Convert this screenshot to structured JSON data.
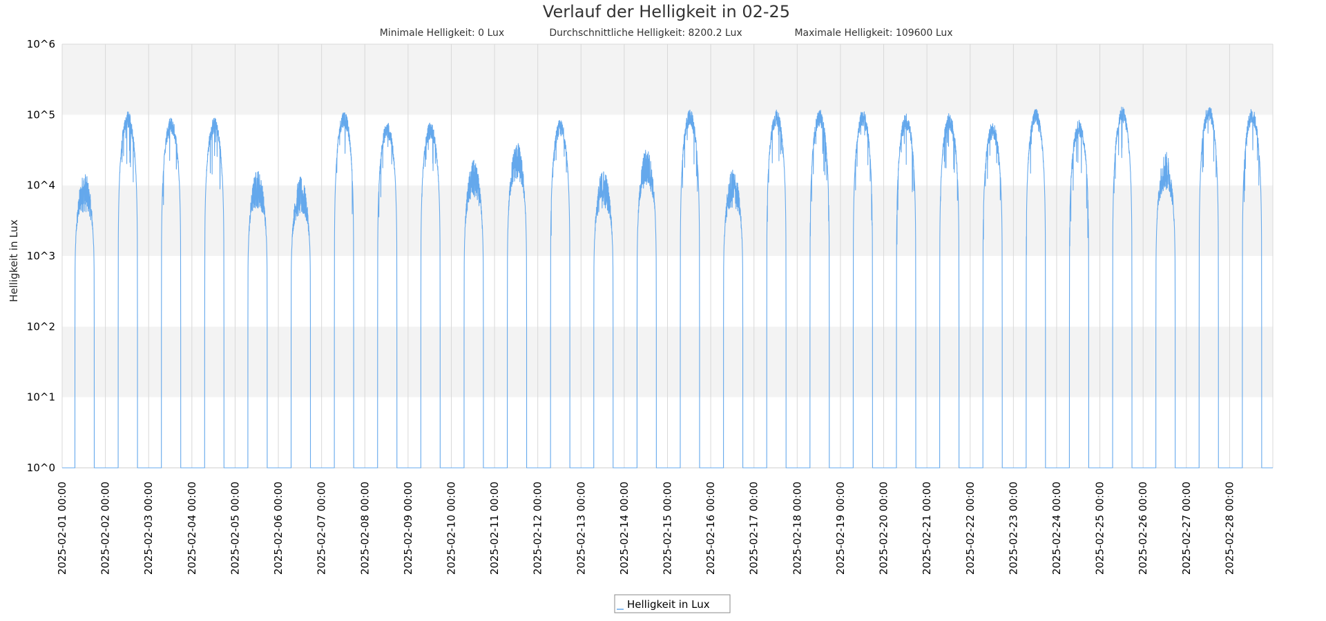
{
  "chart_data": {
    "type": "line",
    "title": "Verlauf der Helligkeit in 02-25",
    "subtitle": {
      "min": "Minimale Helligkeit: 0 Lux",
      "avg": "Durchschnittliche Helligkeit: 8200.2 Lux",
      "max": "Maximale Helligkeit: 109600 Lux"
    },
    "ylabel": "Helligkeit in Lux",
    "yscale": "log",
    "ylim": [
      1,
      1000000
    ],
    "y_ticks": [
      "10^0",
      "10^1",
      "10^2",
      "10^3",
      "10^4",
      "10^5",
      "10^6"
    ],
    "xlim": [
      "2025-02-01 00:00",
      "2025-03-01 00:00"
    ],
    "x_ticks": [
      "2025-02-01 00:00",
      "2025-02-02 00:00",
      "2025-02-03 00:00",
      "2025-02-04 00:00",
      "2025-02-05 00:00",
      "2025-02-06 00:00",
      "2025-02-07 00:00",
      "2025-02-08 00:00",
      "2025-02-09 00:00",
      "2025-02-10 00:00",
      "2025-02-11 00:00",
      "2025-02-12 00:00",
      "2025-02-13 00:00",
      "2025-02-14 00:00",
      "2025-02-15 00:00",
      "2025-02-16 00:00",
      "2025-02-17 00:00",
      "2025-02-18 00:00",
      "2025-02-19 00:00",
      "2025-02-20 00:00",
      "2025-02-21 00:00",
      "2025-02-22 00:00",
      "2025-02-23 00:00",
      "2025-02-24 00:00",
      "2025-02-25 00:00",
      "2025-02-26 00:00",
      "2025-02-27 00:00",
      "2025-02-28 00:00"
    ],
    "grid": true,
    "legend": {
      "position": "bottom-center"
    },
    "series": [
      {
        "name": "Helligkeit in Lux",
        "color": "#64a8ec",
        "daily_peak_lux": [
          8000,
          85000,
          70000,
          70000,
          9000,
          7000,
          88000,
          60000,
          60000,
          12000,
          22000,
          65000,
          9000,
          18000,
          90000,
          9000,
          90000,
          90000,
          90000,
          80000,
          80000,
          60000,
          95000,
          65000,
          100000,
          16000,
          109600,
          95000
        ]
      }
    ]
  }
}
